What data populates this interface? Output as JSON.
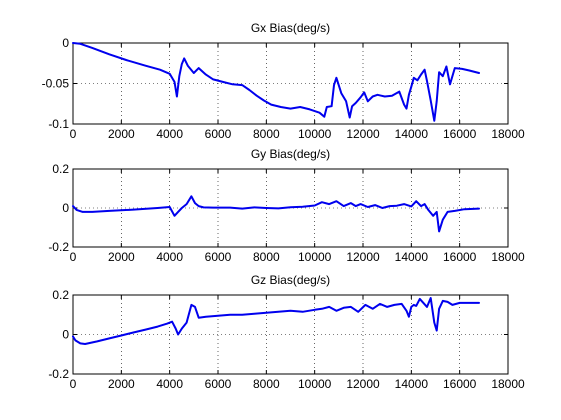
{
  "chart_data": [
    {
      "type": "line",
      "title": "Gx Bias(deg/s)",
      "xlim": [
        0,
        18000
      ],
      "ylim": [
        -0.1,
        0
      ],
      "xticks": [
        0,
        2000,
        4000,
        6000,
        8000,
        10000,
        12000,
        14000,
        16000,
        18000
      ],
      "yticks": [
        -0.1,
        -0.05,
        0
      ],
      "ytick_labels": [
        "-0.1",
        "-0.05",
        "0"
      ],
      "grid": true,
      "color": "#0000ee",
      "series": [
        {
          "x": [
            0,
            300,
            800,
            1500,
            2200,
            3000,
            3600,
            4000,
            4200,
            4300,
            4400,
            4500,
            4600,
            4750,
            5000,
            5200,
            5500,
            5800,
            6200,
            6600,
            7000,
            7300,
            7600,
            7900,
            8200,
            8600,
            9000,
            9400,
            9800,
            10200,
            10400,
            10500,
            10700,
            10800,
            10900,
            11100,
            11300,
            11450,
            11550,
            11700,
            11900,
            12050,
            12200,
            12400,
            12600,
            12900,
            13200,
            13500,
            13700,
            13800,
            13900,
            14000,
            14100,
            14250,
            14400,
            14550,
            14650,
            14800,
            14950,
            15050,
            15150,
            15300,
            15450,
            15600,
            15800,
            16100,
            16400,
            16800
          ],
          "y": [
            0,
            -0.001,
            -0.006,
            -0.014,
            -0.021,
            -0.028,
            -0.033,
            -0.038,
            -0.048,
            -0.066,
            -0.041,
            -0.026,
            -0.019,
            -0.028,
            -0.037,
            -0.031,
            -0.039,
            -0.045,
            -0.048,
            -0.051,
            -0.052,
            -0.058,
            -0.065,
            -0.071,
            -0.076,
            -0.079,
            -0.081,
            -0.079,
            -0.082,
            -0.086,
            -0.091,
            -0.079,
            -0.078,
            -0.052,
            -0.043,
            -0.062,
            -0.072,
            -0.092,
            -0.078,
            -0.074,
            -0.067,
            -0.061,
            -0.072,
            -0.066,
            -0.064,
            -0.066,
            -0.065,
            -0.06,
            -0.076,
            -0.081,
            -0.064,
            -0.054,
            -0.043,
            -0.046,
            -0.039,
            -0.033,
            -0.047,
            -0.071,
            -0.096,
            -0.072,
            -0.036,
            -0.041,
            -0.029,
            -0.051,
            -0.031,
            -0.032,
            -0.034,
            -0.037
          ]
        }
      ]
    },
    {
      "type": "line",
      "title": "Gy Bias(deg/s)",
      "xlim": [
        0,
        18000
      ],
      "ylim": [
        -0.2,
        0.2
      ],
      "xticks": [
        0,
        2000,
        4000,
        6000,
        8000,
        10000,
        12000,
        14000,
        16000,
        18000
      ],
      "yticks": [
        -0.2,
        0,
        0.2
      ],
      "ytick_labels": [
        "-0.2",
        "0",
        "0.2"
      ],
      "grid": true,
      "color": "#0000ee",
      "series": [
        {
          "x": [
            0,
            150,
            400,
            800,
            1500,
            2500,
            3500,
            4000,
            4200,
            4350,
            4500,
            4700,
            4900,
            5050,
            5200,
            5400,
            5800,
            6500,
            7000,
            7500,
            8000,
            8500,
            9000,
            9500,
            10000,
            10300,
            10600,
            10900,
            11200,
            11500,
            11700,
            11900,
            12200,
            12500,
            12800,
            13100,
            13400,
            13700,
            14000,
            14200,
            14400,
            14550,
            14700,
            14900,
            15050,
            15150,
            15300,
            15500,
            15800,
            16200,
            16800
          ],
          "y": [
            0.01,
            -0.01,
            -0.02,
            -0.02,
            -0.015,
            -0.008,
            0,
            0.005,
            -0.04,
            -0.02,
            0,
            0.02,
            0.06,
            0.025,
            0.01,
            0.003,
            0.002,
            0.002,
            -0.003,
            0.003,
            0,
            -0.002,
            0.004,
            0.006,
            0.013,
            0.03,
            0.02,
            0.035,
            0.01,
            0.025,
            0.01,
            0.02,
            0.005,
            0.015,
            0.0,
            0.01,
            0.012,
            0.02,
            0.008,
            0.035,
            0.01,
            0.02,
            -0.01,
            -0.04,
            -0.02,
            -0.12,
            -0.06,
            -0.02,
            -0.015,
            -0.006,
            -0.003
          ]
        }
      ]
    },
    {
      "type": "line",
      "title": "Gz Bias(deg/s)",
      "xlim": [
        0,
        18000
      ],
      "ylim": [
        -0.2,
        0.2
      ],
      "xticks": [
        0,
        2000,
        4000,
        6000,
        8000,
        10000,
        12000,
        14000,
        16000,
        18000
      ],
      "yticks": [
        -0.2,
        0,
        0.2
      ],
      "ytick_labels": [
        "-0.2",
        "0",
        "0.2"
      ],
      "grid": true,
      "color": "#0000ee",
      "series": [
        {
          "x": [
            0,
            100,
            300,
            500,
            1000,
            1500,
            2000,
            2500,
            3000,
            3500,
            3900,
            4100,
            4250,
            4350,
            4500,
            4700,
            4900,
            5050,
            5200,
            5500,
            6000,
            6500,
            7000,
            7500,
            8000,
            8500,
            9000,
            9500,
            10000,
            10300,
            10600,
            10900,
            11200,
            11500,
            11800,
            12100,
            12400,
            12700,
            13000,
            13300,
            13600,
            13800,
            13900,
            14000,
            14100,
            14200,
            14350,
            14500,
            14650,
            14800,
            14950,
            15050,
            15150,
            15300,
            15500,
            15700,
            16000,
            16400,
            16800
          ],
          "y": [
            -0.01,
            -0.03,
            -0.045,
            -0.048,
            -0.035,
            -0.02,
            -0.005,
            0.01,
            0.025,
            0.04,
            0.055,
            0.065,
            0.03,
            0.0,
            0.03,
            0.06,
            0.15,
            0.14,
            0.085,
            0.09,
            0.095,
            0.1,
            0.1,
            0.105,
            0.11,
            0.115,
            0.12,
            0.115,
            0.125,
            0.13,
            0.14,
            0.12,
            0.135,
            0.14,
            0.115,
            0.15,
            0.13,
            0.155,
            0.14,
            0.15,
            0.155,
            0.12,
            0.09,
            0.14,
            0.15,
            0.145,
            0.18,
            0.16,
            0.14,
            0.185,
            0.06,
            0.02,
            0.13,
            0.17,
            0.165,
            0.15,
            0.16,
            0.16,
            0.16
          ]
        }
      ]
    }
  ]
}
